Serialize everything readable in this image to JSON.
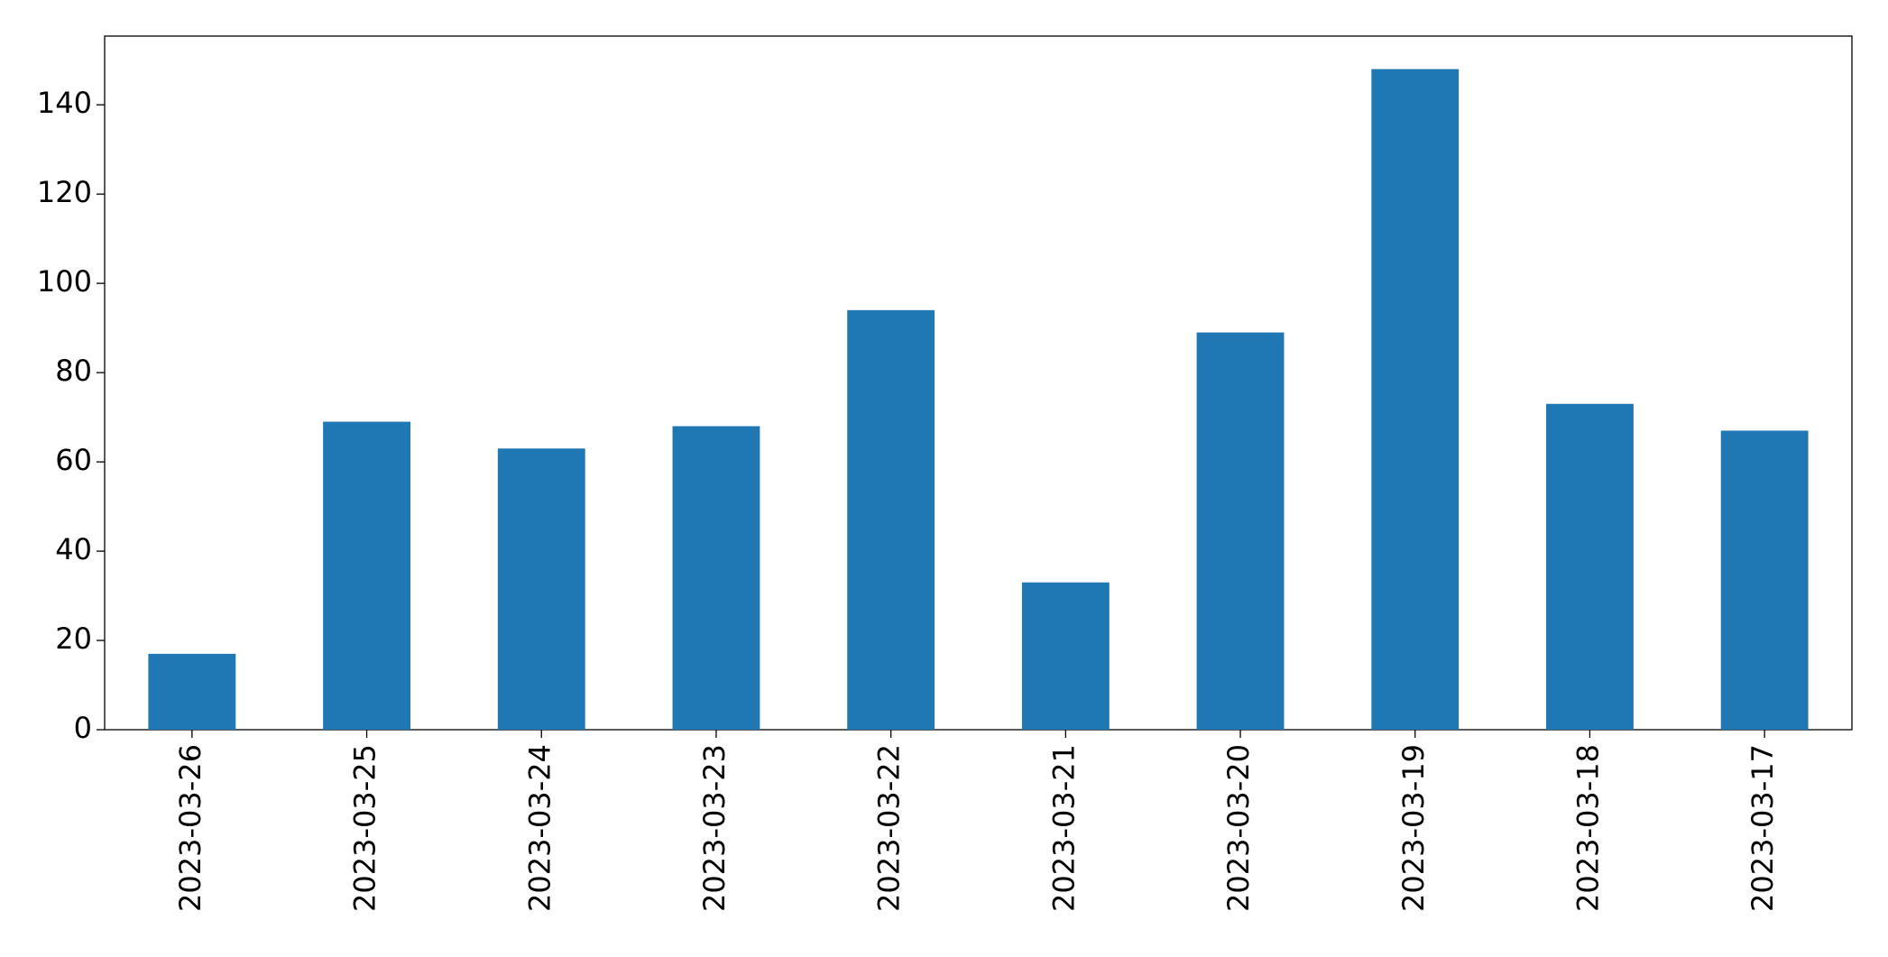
{
  "chart_data": {
    "type": "bar",
    "categories": [
      "2023-03-26",
      "2023-03-25",
      "2023-03-24",
      "2023-03-23",
      "2023-03-22",
      "2023-03-21",
      "2023-03-20",
      "2023-03-19",
      "2023-03-18",
      "2023-03-17"
    ],
    "values": [
      17,
      69,
      63,
      68,
      94,
      33,
      89,
      148,
      73,
      67
    ],
    "color": "#1f77b4",
    "ylim": [
      0,
      155.4
    ],
    "yticks": [
      0,
      20,
      40,
      60,
      80,
      100,
      120,
      140
    ],
    "grid": false
  }
}
